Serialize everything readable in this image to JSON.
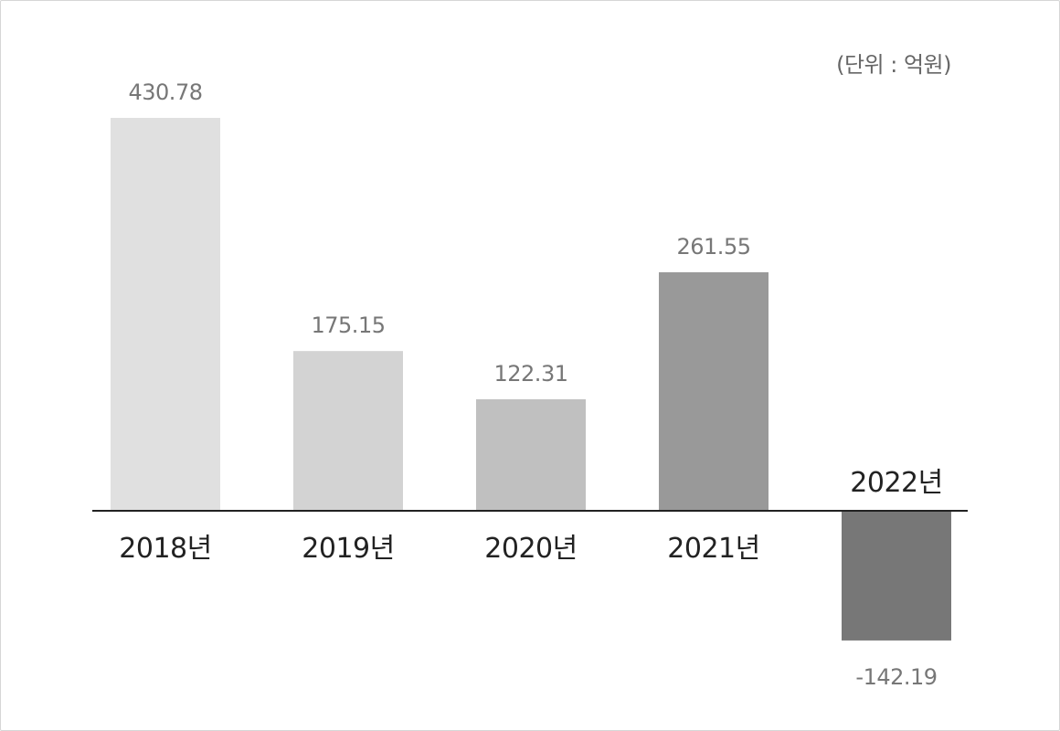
{
  "chart_data": {
    "type": "bar",
    "unit": "(단위 : 억원)",
    "categories": [
      "2018년",
      "2019년",
      "2020년",
      "2021년",
      "2022년"
    ],
    "values": [
      430.78,
      175.15,
      122.31,
      261.55,
      -142.19
    ],
    "value_labels": [
      "430.78",
      "175.15",
      "122.31",
      "261.55",
      "-142.19"
    ],
    "bar_colors": [
      "#e0e0e0",
      "#d3d3d3",
      "#c0c0c0",
      "#999999",
      "#777777"
    ],
    "title": "",
    "xlabel": "",
    "ylabel": "",
    "grid": false,
    "baseline_at_zero": true
  }
}
